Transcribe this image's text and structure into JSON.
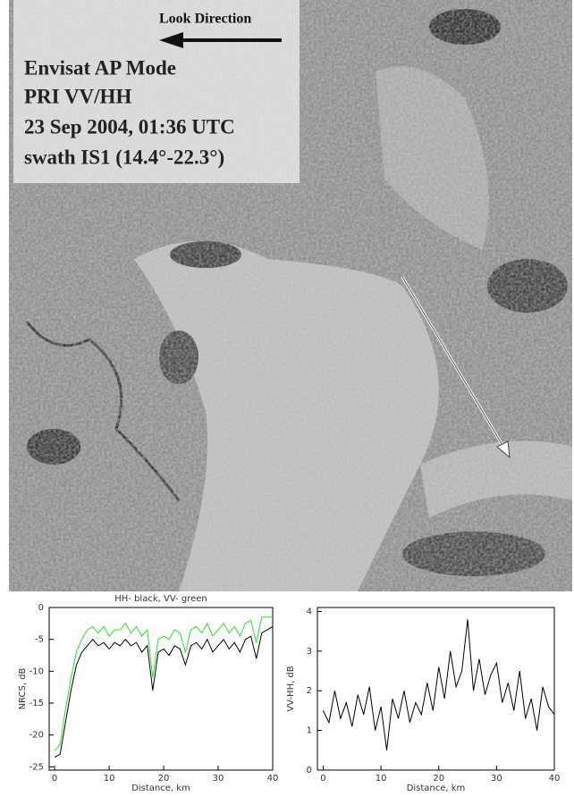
{
  "image": {
    "look_direction": "Look Direction",
    "caption": [
      "Envisat AP Mode",
      "PRI VV/HH",
      "23 Sep 2004, 01:36 UTC",
      "swath IS1 (14.4°-22.3°)"
    ]
  },
  "chart_data": [
    {
      "type": "line",
      "title": "HH- black, VV- green",
      "x_label": "Distance, km",
      "y_label": "NRCS, dB",
      "x": [
        0,
        1,
        2,
        3,
        4,
        5,
        6,
        7,
        8,
        9,
        10,
        11,
        12,
        13,
        14,
        15,
        16,
        17,
        18,
        19,
        20,
        21,
        22,
        23,
        24,
        25,
        26,
        27,
        28,
        29,
        30,
        31,
        32,
        33,
        34,
        35,
        36,
        37,
        38,
        39,
        40
      ],
      "series": [
        {
          "color": "#33dd33",
          "values": [
            -22.5,
            -21.5,
            -16,
            -11,
            -7,
            -5,
            -3.5,
            -3,
            -4,
            -3,
            -4.5,
            -3.5,
            -3.5,
            -2.5,
            -4,
            -3,
            -4.5,
            -3.5,
            -11,
            -5,
            -4.5,
            -5,
            -3.5,
            -4,
            -7,
            -3.5,
            -3,
            -4,
            -2.5,
            -4.5,
            -3.5,
            -2.5,
            -4,
            -3,
            -4.5,
            -2.5,
            -2,
            -5.5,
            -1.5,
            -1.5,
            -1.5
          ]
        },
        {
          "color": "#000000",
          "values": [
            -23.5,
            -23,
            -18,
            -13,
            -9,
            -7,
            -6,
            -5,
            -6,
            -5.5,
            -6.5,
            -5.5,
            -6,
            -5,
            -6,
            -5.5,
            -7,
            -6,
            -13,
            -7,
            -6.5,
            -7.5,
            -6,
            -6.5,
            -9,
            -6,
            -5.5,
            -6.5,
            -5,
            -7,
            -6,
            -5,
            -6.5,
            -5.5,
            -7,
            -5,
            -4.5,
            -8,
            -4,
            -3.5,
            -3
          ]
        }
      ],
      "xlim": [
        -1,
        40
      ],
      "ylim": [
        -25.5,
        0
      ],
      "xticks": [
        0,
        10,
        20,
        30,
        40
      ],
      "yticks": [
        0,
        -5,
        -10,
        -15,
        -20,
        -25
      ]
    },
    {
      "type": "line",
      "x_label": "Distance, km",
      "y_label": "VV-HH, dB",
      "x": [
        0,
        1,
        2,
        3,
        4,
        5,
        6,
        7,
        8,
        9,
        10,
        11,
        12,
        13,
        14,
        15,
        16,
        17,
        18,
        19,
        20,
        21,
        22,
        23,
        24,
        25,
        26,
        27,
        28,
        29,
        30,
        31,
        32,
        33,
        34,
        35,
        36,
        37,
        38,
        39,
        40
      ],
      "series": [
        {
          "color": "#000000",
          "values": [
            1.5,
            1.2,
            2.0,
            1.3,
            1.7,
            1.1,
            1.9,
            1.4,
            2.1,
            1.0,
            1.6,
            0.5,
            1.8,
            1.3,
            2.0,
            1.2,
            1.7,
            1.4,
            2.2,
            1.5,
            2.6,
            1.8,
            3.0,
            2.1,
            2.5,
            3.8,
            2.0,
            2.8,
            1.9,
            2.4,
            2.7,
            1.7,
            2.2,
            1.5,
            2.5,
            1.3,
            1.8,
            1.0,
            2.1,
            1.6,
            1.4
          ]
        }
      ],
      "xlim": [
        -1,
        40
      ],
      "ylim": [
        0,
        4.1
      ],
      "xticks": [
        0,
        10,
        20,
        30,
        40
      ],
      "yticks": [
        0,
        1,
        2,
        3,
        4
      ]
    }
  ]
}
